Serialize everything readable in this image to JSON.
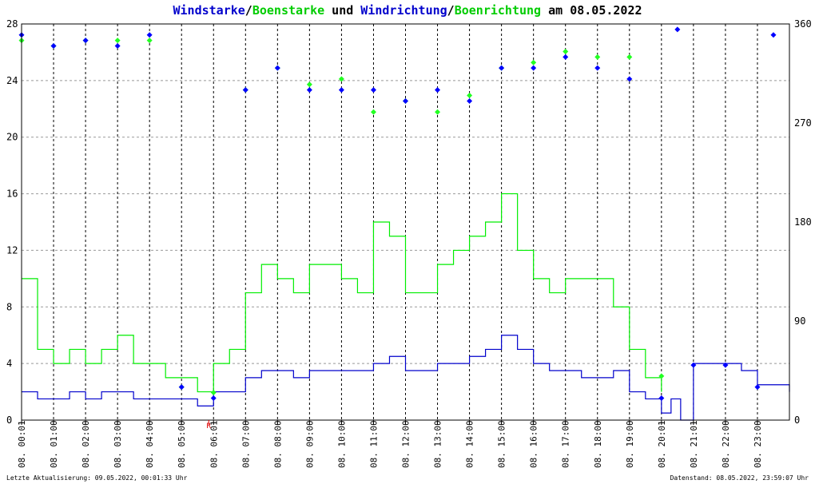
{
  "title": {
    "wind": "Windstarke",
    "sep1": "/",
    "gust": "Boenstarke",
    "und": " und ",
    "dir": "Windrichtung",
    "sep2": "/",
    "gustdir": "Boenrichtung",
    "am": " am 08.05.2022"
  },
  "footer": {
    "left": "Letzte Aktualisierung: 09.05.2022, 00:01:33 Uhr",
    "right": "Datenstand: 08.05.2022, 23:59:07 Uhr"
  },
  "colors": {
    "wind": "#0000cc",
    "gust": "#00ee00",
    "wind_dir": "#0000ff",
    "gust_dir": "#22ff22",
    "grid": "#000000",
    "marker": "#dd0000"
  },
  "chart_data": {
    "type": "line",
    "title": "Windstarke/Boenstarke und Windrichtung/Boenrichtung am 08.05.2022",
    "x_ticks": [
      "08. 00:01",
      "08. 01:00",
      "08. 02:00",
      "08. 03:00",
      "08. 04:00",
      "08. 05:00",
      "08. 06:01",
      "08. 07:00",
      "08. 08:00",
      "08. 09:00",
      "08. 10:00",
      "08. 11:00",
      "08. 12:00",
      "08. 13:00",
      "08. 14:00",
      "08. 15:00",
      "08. 16:00",
      "08. 17:00",
      "08. 18:00",
      "08. 19:00",
      "08. 20:01",
      "08. 21:01",
      "08. 22:00",
      "08. 23:00"
    ],
    "x_tick_hours": [
      0,
      1,
      2,
      3,
      4,
      5,
      6,
      7,
      8,
      9,
      10,
      11,
      12,
      13,
      14,
      15,
      16,
      17,
      18,
      19,
      20,
      21,
      22,
      23
    ],
    "x_range_hours": [
      0,
      24
    ],
    "marker_label": "R",
    "marker_hour": 5.85,
    "ylim_left": [
      0,
      28
    ],
    "yticks_left": [
      0,
      4,
      8,
      12,
      16,
      20,
      24,
      28
    ],
    "ylim_right": [
      0,
      360
    ],
    "yticks_right": [
      0,
      90,
      180,
      270,
      360
    ],
    "grid": true,
    "series": [
      {
        "name": "Windstarke",
        "axis": "left",
        "x": [
          0,
          0.5,
          1,
          1.5,
          2,
          2.5,
          3,
          3.5,
          4,
          4.5,
          5,
          5.5,
          6,
          6.5,
          7,
          7.5,
          8,
          8.5,
          9,
          9.5,
          10,
          10.5,
          11,
          11.5,
          12,
          12.5,
          13,
          13.5,
          14,
          14.5,
          15,
          15.5,
          16,
          16.5,
          17,
          17.5,
          18,
          18.5,
          19,
          19.5,
          20,
          20.3,
          20.6,
          21,
          21.5,
          22,
          22.5,
          23,
          23.5,
          24
        ],
        "y": [
          2,
          1.5,
          1.5,
          2,
          1.5,
          2,
          2,
          1.5,
          1.5,
          1.5,
          1.5,
          1,
          2,
          2,
          3,
          3.5,
          3.5,
          3,
          3.5,
          3.5,
          3.5,
          3.5,
          4,
          4.5,
          3.5,
          3.5,
          4,
          4,
          4.5,
          5,
          6,
          5,
          4,
          3.5,
          3.5,
          3,
          3,
          3.5,
          2,
          1.5,
          0.5,
          1.5,
          0,
          4,
          4,
          4,
          3.5,
          2.5,
          2.5,
          2
        ]
      },
      {
        "name": "Boenstarke",
        "axis": "left",
        "x": [
          0,
          0.5,
          1,
          1.5,
          2,
          2.5,
          3,
          3.5,
          4,
          4.5,
          5,
          5.5,
          6,
          6.5,
          7,
          7.5,
          8,
          8.5,
          9,
          9.5,
          10,
          10.5,
          11,
          11.5,
          12,
          12.5,
          13,
          13.5,
          14,
          14.5,
          15,
          15.5,
          16,
          16.5,
          17,
          17.5,
          18,
          18.5,
          19,
          19.5,
          20
        ],
        "y": [
          10,
          5,
          4,
          5,
          4,
          5,
          6,
          4,
          4,
          3,
          3,
          2,
          4,
          5,
          9,
          11,
          10,
          9,
          11,
          11,
          10,
          9,
          14,
          13,
          9,
          9,
          11,
          12,
          13,
          14,
          16,
          12,
          10,
          9,
          10,
          10,
          10,
          8,
          5,
          3,
          2
        ]
      },
      {
        "name": "Windrichtung",
        "axis": "right",
        "x": [
          0,
          1,
          2,
          3,
          4,
          5,
          6,
          7,
          8,
          9,
          10,
          11,
          12,
          13,
          14,
          15,
          16,
          17,
          18,
          19,
          20,
          20.5,
          21,
          22,
          23,
          23.5
        ],
        "y": [
          350,
          340,
          345,
          340,
          350,
          30,
          20,
          300,
          320,
          300,
          300,
          300,
          290,
          300,
          290,
          320,
          320,
          330,
          320,
          310,
          20,
          355,
          50,
          50,
          30,
          350
        ]
      },
      {
        "name": "Boenrichtung",
        "axis": "right",
        "x": [
          0,
          1,
          2,
          3,
          4,
          5,
          6,
          7,
          8,
          9,
          10,
          11,
          12,
          13,
          14,
          15,
          16,
          17,
          18,
          19,
          20
        ],
        "y": [
          345,
          340,
          345,
          345,
          345,
          30,
          25,
          300,
          320,
          305,
          310,
          280,
          290,
          280,
          295,
          320,
          325,
          335,
          330,
          330,
          40
        ]
      }
    ]
  }
}
